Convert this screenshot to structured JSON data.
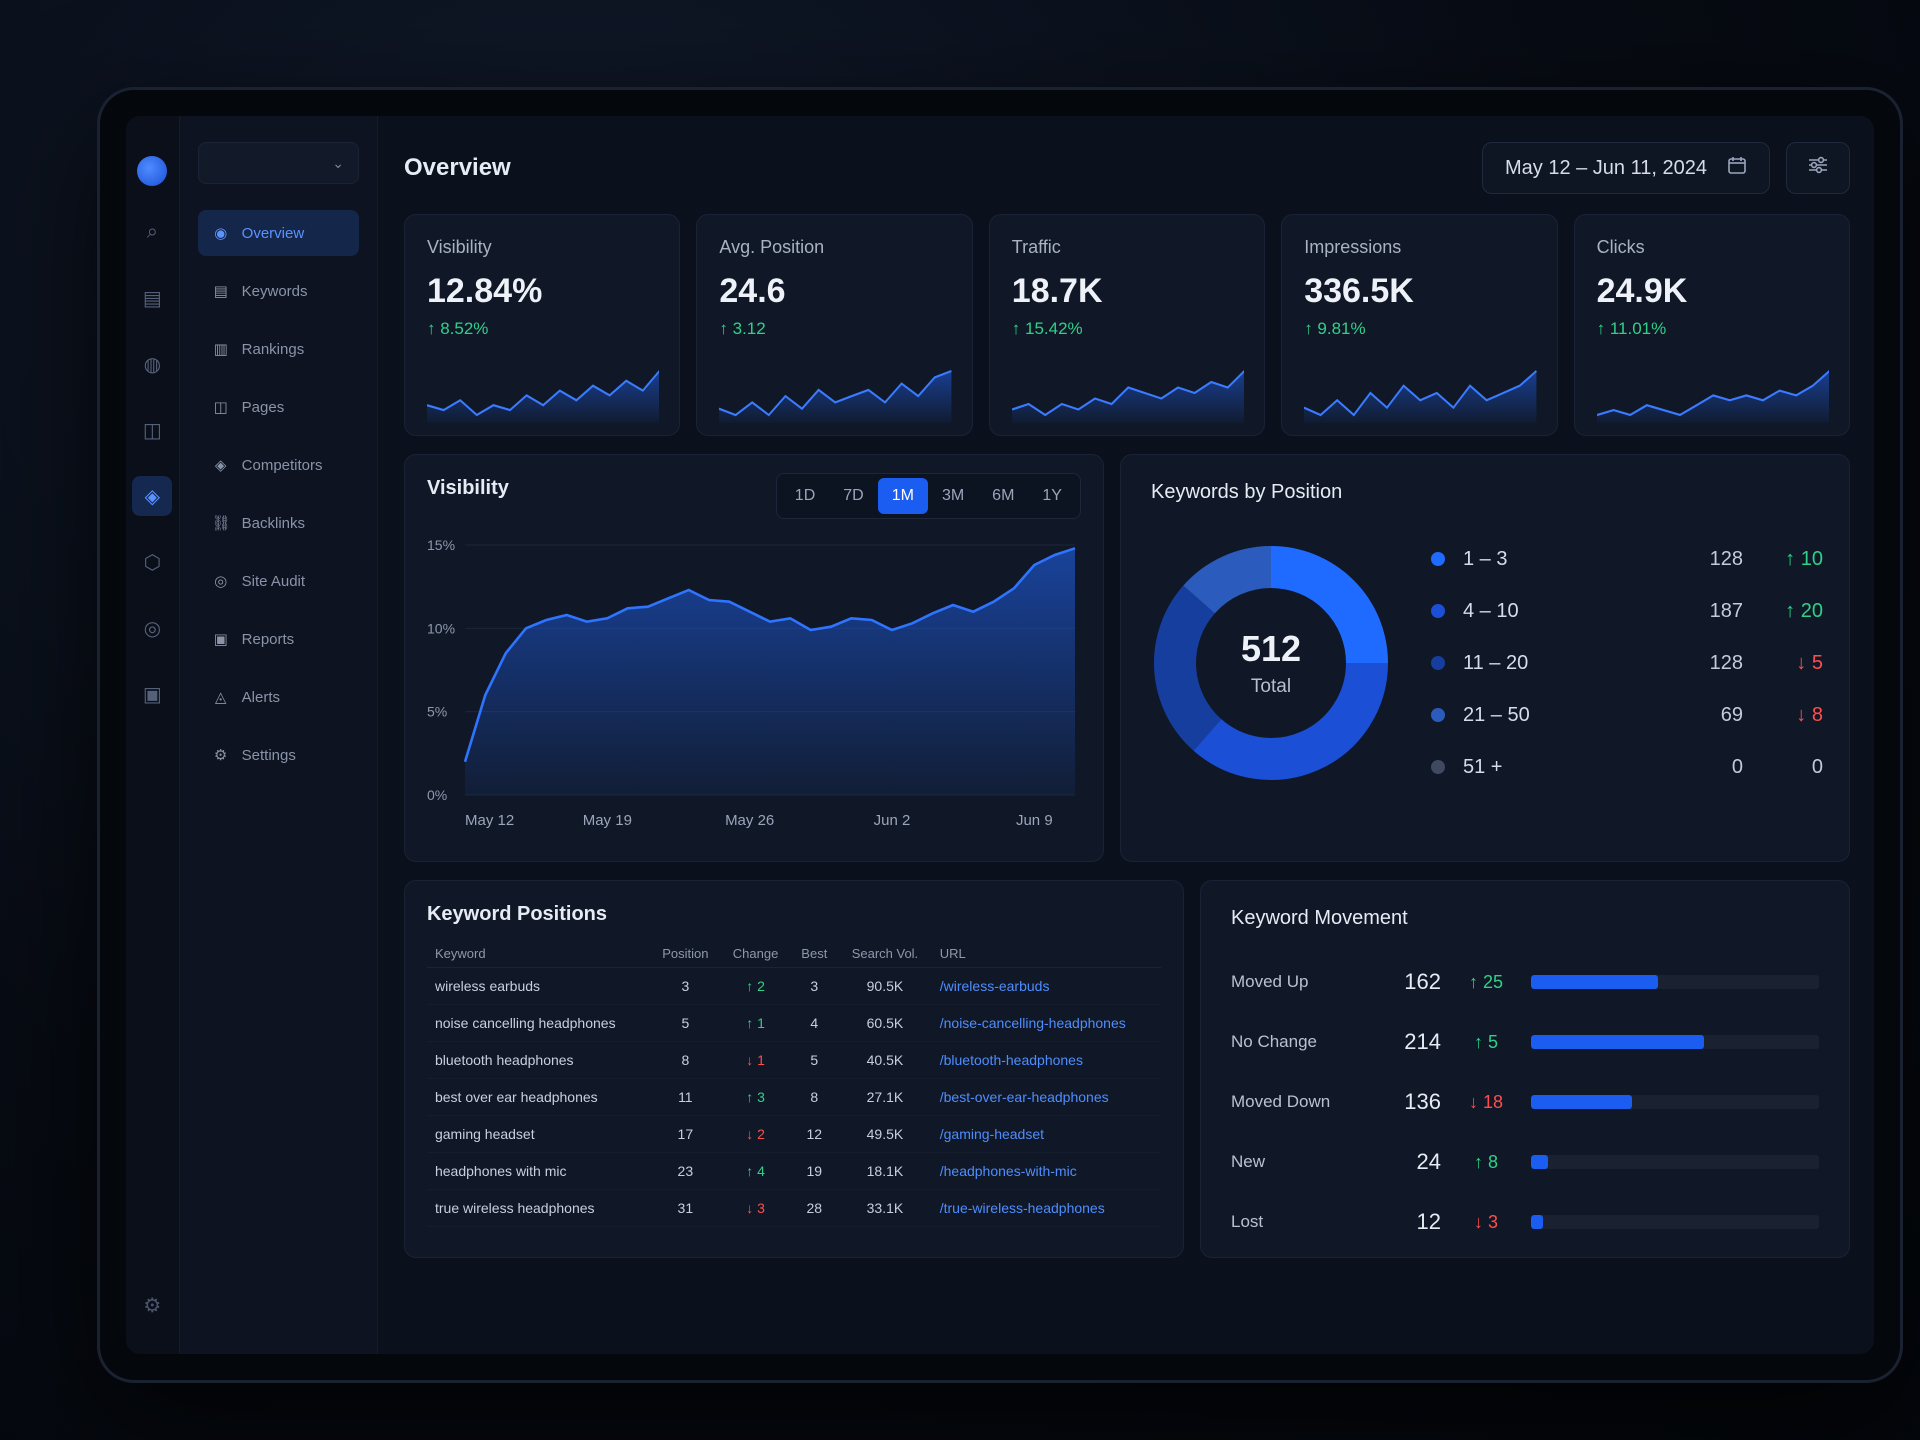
{
  "rail": {
    "icons": [
      "search-icon",
      "keywords-icon",
      "rankings-icon",
      "pages-icon",
      "competitors-icon",
      "backlinks-icon",
      "site-audit-icon",
      "reports-icon"
    ],
    "bottom_icon": "settings-icon"
  },
  "sidebar": {
    "workspace": "",
    "items": [
      {
        "label": "Overview",
        "icon": "overview-icon",
        "active": true
      },
      {
        "label": "Keywords",
        "icon": "keywords-icon"
      },
      {
        "label": "Rankings",
        "icon": "rankings-icon"
      },
      {
        "label": "Pages",
        "icon": "pages-icon"
      },
      {
        "label": "Competitors",
        "icon": "competitors-icon"
      },
      {
        "label": "Backlinks",
        "icon": "backlinks-icon"
      },
      {
        "label": "Site Audit",
        "icon": "site-audit-icon"
      },
      {
        "label": "Reports",
        "icon": "reports-icon"
      },
      {
        "label": "Alerts",
        "icon": "alerts-icon"
      },
      {
        "label": "Settings",
        "icon": "settings-icon"
      }
    ]
  },
  "header": {
    "title": "Overview",
    "date_range": "May 12 – Jun 11, 2024",
    "calendar_icon": "calendar-icon",
    "filter_icon": "filter-sliders-icon"
  },
  "kpis": [
    {
      "label": "Visibility",
      "value": "12.84%",
      "delta": "↑ 8.52%",
      "spark": [
        5,
        4,
        6,
        3,
        5,
        4,
        7,
        5,
        8,
        6,
        9,
        7,
        10,
        8,
        12
      ]
    },
    {
      "label": "Avg. Position",
      "value": "24.6",
      "delta": "↑ 3.12",
      "spark": [
        4,
        3,
        5,
        3,
        6,
        4,
        7,
        5,
        6,
        7,
        5,
        8,
        6,
        9,
        10
      ]
    },
    {
      "label": "Traffic",
      "value": "18.7K",
      "delta": "↑ 15.42%",
      "spark": [
        4,
        5,
        3,
        5,
        4,
        6,
        5,
        8,
        7,
        6,
        8,
        7,
        9,
        8,
        11
      ]
    },
    {
      "label": "Impressions",
      "value": "336.5K",
      "delta": "↑ 9.81%",
      "spark": [
        5,
        4,
        6,
        4,
        7,
        5,
        8,
        6,
        7,
        5,
        8,
        6,
        7,
        8,
        10
      ]
    },
    {
      "label": "Clicks",
      "value": "24.9K",
      "delta": "↑ 11.01%",
      "spark": [
        4,
        5,
        4,
        6,
        5,
        4,
        6,
        8,
        7,
        8,
        7,
        9,
        8,
        10,
        13
      ]
    }
  ],
  "visibility": {
    "title": "Visibility",
    "ranges": [
      "1D",
      "7D",
      "1M",
      "3M",
      "6M",
      "1Y"
    ],
    "active_range": "1M"
  },
  "chart_data": {
    "type": "area",
    "title": "Visibility",
    "x": [
      "May 12",
      "May 13",
      "May 14",
      "May 15",
      "May 16",
      "May 17",
      "May 18",
      "May 19",
      "May 20",
      "May 21",
      "May 22",
      "May 23",
      "May 24",
      "May 25",
      "May 26",
      "May 27",
      "May 28",
      "May 29",
      "May 30",
      "May 31",
      "Jun 1",
      "Jun 2",
      "Jun 3",
      "Jun 4",
      "Jun 5",
      "Jun 6",
      "Jun 7",
      "Jun 8",
      "Jun 9",
      "Jun 10",
      "Jun 11"
    ],
    "values": [
      2.0,
      6.0,
      8.5,
      10.0,
      10.5,
      10.8,
      10.4,
      10.6,
      11.2,
      11.3,
      11.8,
      12.3,
      11.7,
      11.6,
      11.0,
      10.4,
      10.6,
      9.9,
      10.1,
      10.6,
      10.5,
      9.9,
      10.3,
      10.9,
      11.4,
      11.0,
      11.6,
      12.4,
      13.8,
      14.4,
      14.8
    ],
    "x_ticks": [
      "May 12",
      "May 19",
      "May 26",
      "Jun 2",
      "Jun 9"
    ],
    "y_ticks": [
      "0%",
      "5%",
      "10%",
      "15%"
    ],
    "ylim": [
      0,
      15
    ],
    "grid": true
  },
  "keywords_by_position": {
    "title": "Keywords by Position",
    "total": "512",
    "total_label": "Total",
    "buckets": [
      {
        "name": "1 – 3",
        "count": 128,
        "count_text": "128",
        "change": "↑ 10",
        "dir": "up",
        "color": "#1f6bff"
      },
      {
        "name": "4 – 10",
        "count": 187,
        "count_text": "187",
        "change": "↑ 20",
        "dir": "up",
        "color": "#1a4fd6"
      },
      {
        "name": "11 – 20",
        "count": 128,
        "count_text": "128",
        "change": "↓ 5",
        "dir": "down",
        "color": "#153e9e"
      },
      {
        "name": "21 – 50",
        "count": 69,
        "count_text": "69",
        "change": "↓ 8",
        "dir": "down",
        "color": "#2a5bbd"
      },
      {
        "name": "51 +",
        "count": 0,
        "count_text": "0",
        "change": "0",
        "dir": "neutral",
        "color": "#3f4a60"
      }
    ]
  },
  "keyword_positions": {
    "title": "Keyword Positions",
    "columns": [
      "Keyword",
      "Position",
      "Change",
      "Best",
      "Search Vol.",
      "URL"
    ],
    "rows": [
      {
        "keyword": "wireless earbuds",
        "position": "3",
        "change": "↑ 2",
        "dir": "up",
        "best": "3",
        "volume": "90.5K",
        "url": "/wireless-earbuds"
      },
      {
        "keyword": "noise cancelling headphones",
        "position": "5",
        "change": "↑ 1",
        "dir": "up",
        "best": "4",
        "volume": "60.5K",
        "url": "/noise-cancelling-headphones"
      },
      {
        "keyword": "bluetooth headphones",
        "position": "8",
        "change": "↓ 1",
        "dir": "down",
        "best": "5",
        "volume": "40.5K",
        "url": "/bluetooth-headphones"
      },
      {
        "keyword": "best over ear headphones",
        "position": "11",
        "change": "↑ 3",
        "dir": "up",
        "best": "8",
        "volume": "27.1K",
        "url": "/best-over-ear-headphones"
      },
      {
        "keyword": "gaming headset",
        "position": "17",
        "change": "↓ 2",
        "dir": "down",
        "best": "12",
        "volume": "49.5K",
        "url": "/gaming-headset"
      },
      {
        "keyword": "headphones with mic",
        "position": "23",
        "change": "↑ 4",
        "dir": "up",
        "best": "19",
        "volume": "18.1K",
        "url": "/headphones-with-mic"
      },
      {
        "keyword": "true wireless headphones",
        "position": "31",
        "change": "↓ 3",
        "dir": "down",
        "best": "28",
        "volume": "33.1K",
        "url": "/true-wireless-headphones"
      }
    ]
  },
  "keyword_movement": {
    "title": "Keyword Movement",
    "rows": [
      {
        "label": "Moved Up",
        "value": "162",
        "change": "↑ 25",
        "dir": "up",
        "fill": 0.44
      },
      {
        "label": "No Change",
        "value": "214",
        "change": "↑ 5",
        "dir": "up",
        "fill": 0.6
      },
      {
        "label": "Moved Down",
        "value": "136",
        "change": "↓ 18",
        "dir": "down",
        "fill": 0.35
      },
      {
        "label": "New",
        "value": "24",
        "change": "↑ 8",
        "dir": "up",
        "fill": 0.06
      },
      {
        "label": "Lost",
        "value": "12",
        "change": "↓ 3",
        "dir": "down",
        "fill": 0.04
      }
    ]
  }
}
